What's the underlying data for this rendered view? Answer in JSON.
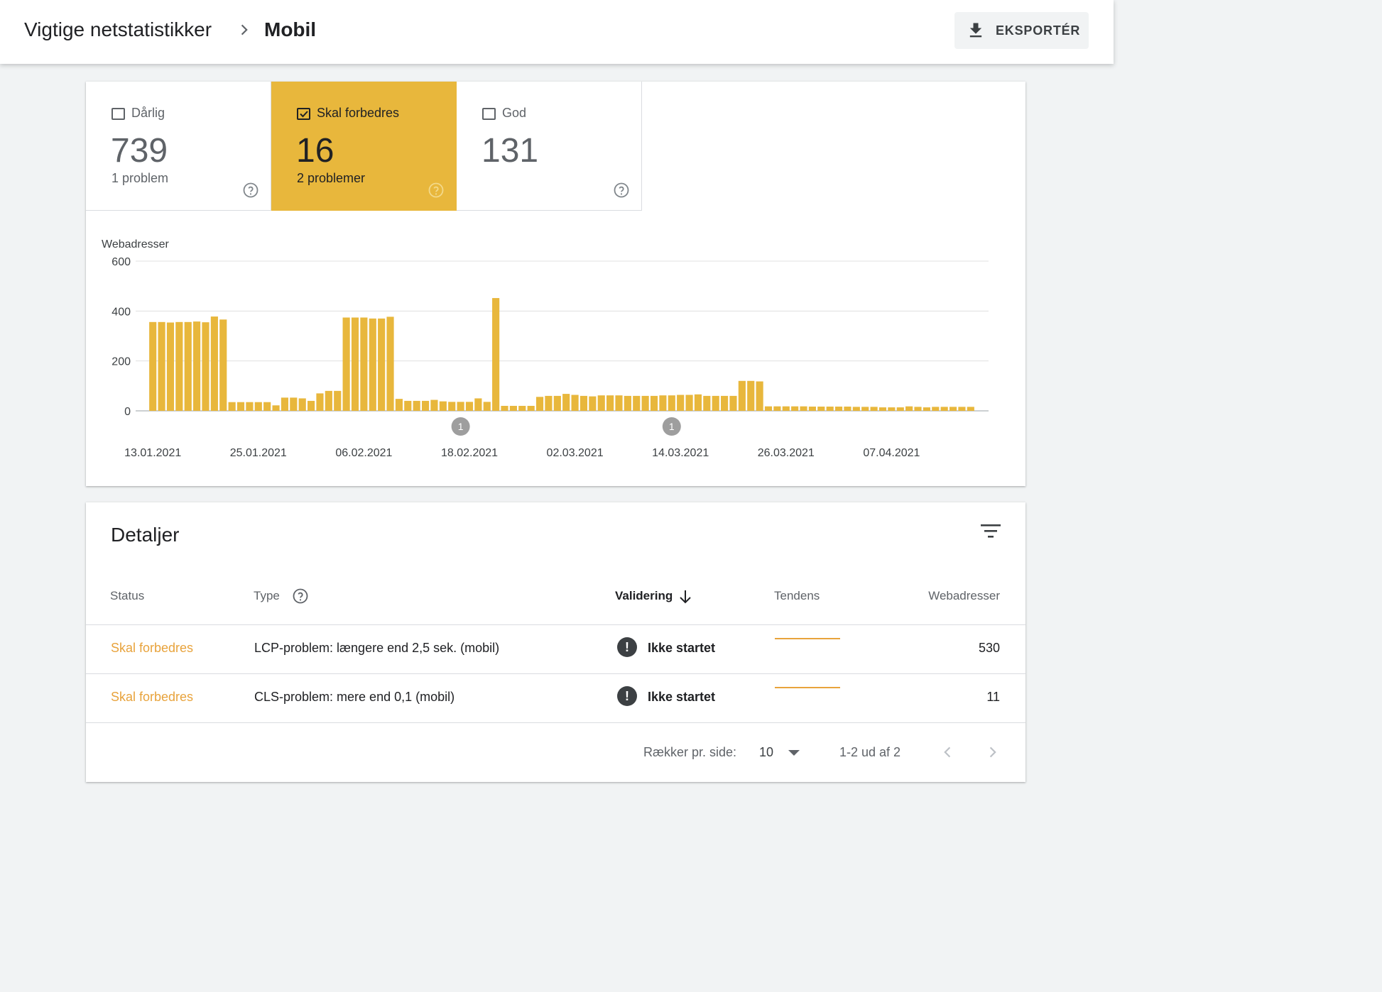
{
  "header": {
    "breadcrumb_parent": "Vigtige netstatistikker",
    "breadcrumb_current": "Mobil",
    "export_label": "EKSPORTÉR"
  },
  "tiles": [
    {
      "label": "Dårlig",
      "count": "739",
      "sub": "1 problem",
      "checked": false
    },
    {
      "label": "Skal forbedres",
      "count": "16",
      "sub": "2 problemer",
      "checked": true
    },
    {
      "label": "God",
      "count": "131",
      "sub": "",
      "checked": false
    }
  ],
  "chart_data": {
    "type": "bar",
    "ylabel": "Webadresser",
    "ylim": [
      0,
      600
    ],
    "yticks": [
      "600",
      "400",
      "200",
      "0"
    ],
    "x_ticks": [
      "13.01.2021",
      "25.01.2021",
      "06.02.2021",
      "18.02.2021",
      "02.03.2021",
      "14.03.2021",
      "26.03.2021",
      "07.04.2021"
    ],
    "series_color": "#e8b73c",
    "annotations": [
      {
        "label": "1",
        "date": "17.02.2021"
      },
      {
        "label": "1",
        "date": "13.03.2021"
      }
    ],
    "series": [
      {
        "values": [
          356,
          356,
          354,
          356,
          356,
          358,
          355,
          378,
          366,
          35,
          35,
          35,
          35,
          35,
          22,
          53,
          53,
          50,
          40,
          70,
          80,
          80,
          374,
          374,
          374,
          370,
          370,
          377,
          48,
          40,
          40,
          40,
          44,
          38,
          36,
          36,
          36,
          50,
          36,
          452,
          20,
          20,
          20,
          20,
          56,
          60,
          60,
          68,
          64,
          60,
          58,
          62,
          62,
          62,
          60,
          60,
          60,
          60,
          62,
          62,
          64,
          64,
          66,
          60,
          60,
          60,
          60,
          120,
          120,
          118,
          18,
          18,
          18,
          18,
          18,
          17,
          17,
          17,
          17,
          17,
          16,
          16,
          16,
          14,
          14,
          14,
          18,
          16,
          14,
          16,
          16,
          16,
          16,
          16
        ]
      }
    ]
  },
  "details": {
    "title": "Detaljer",
    "columns": {
      "status": "Status",
      "type": "Type",
      "validation": "Validering",
      "trend": "Tendens",
      "urls": "Webadresser"
    },
    "rows": [
      {
        "status": "Skal forbedres",
        "type": "LCP-problem: længere end 2,5 sek. (mobil)",
        "validation": "Ikke startet",
        "urls": "530"
      },
      {
        "status": "Skal forbedres",
        "type": "CLS-problem: mere end 0,1 (mobil)",
        "validation": "Ikke startet",
        "urls": "11"
      }
    ],
    "footer": {
      "rows_per_page_label": "Rækker pr. side:",
      "rows_per_page_value": "10",
      "range": "1-2 ud af 2"
    }
  }
}
